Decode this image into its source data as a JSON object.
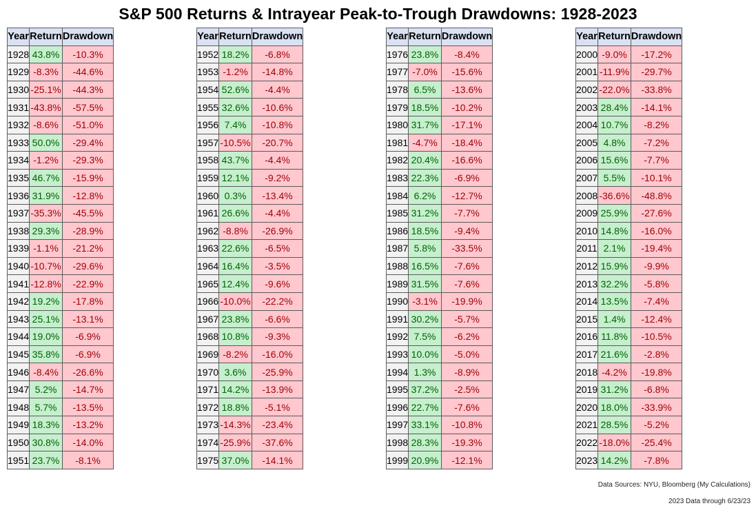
{
  "title": "S&P 500 Returns & Intrayear Peak-to-Trough Drawdowns: 1928-2023",
  "headers": {
    "year": "Year",
    "return": "Return",
    "drawdown": "Drawdown"
  },
  "source_note": "Data Sources: NYU, Bloomberg (My Calculations)",
  "date_note": "2023 Data through 6/23/23",
  "colors": {
    "positive_fill": "#c6efce",
    "negative_fill": "#ffc7ce",
    "header_fill": "#d9e1f2"
  },
  "chart_data": {
    "type": "table",
    "title": "S&P 500 Returns & Intrayear Peak-to-Trough Drawdowns: 1928-2023",
    "columns": [
      "Year",
      "Return",
      "Drawdown"
    ],
    "rows": [
      [
        "1928",
        "43.8%",
        "-10.3%"
      ],
      [
        "1929",
        "-8.3%",
        "-44.6%"
      ],
      [
        "1930",
        "-25.1%",
        "-44.3%"
      ],
      [
        "1931",
        "-43.8%",
        "-57.5%"
      ],
      [
        "1932",
        "-8.6%",
        "-51.0%"
      ],
      [
        "1933",
        "50.0%",
        "-29.4%"
      ],
      [
        "1934",
        "-1.2%",
        "-29.3%"
      ],
      [
        "1935",
        "46.7%",
        "-15.9%"
      ],
      [
        "1936",
        "31.9%",
        "-12.8%"
      ],
      [
        "1937",
        "-35.3%",
        "-45.5%"
      ],
      [
        "1938",
        "29.3%",
        "-28.9%"
      ],
      [
        "1939",
        "-1.1%",
        "-21.2%"
      ],
      [
        "1940",
        "-10.7%",
        "-29.6%"
      ],
      [
        "1941",
        "-12.8%",
        "-22.9%"
      ],
      [
        "1942",
        "19.2%",
        "-17.8%"
      ],
      [
        "1943",
        "25.1%",
        "-13.1%"
      ],
      [
        "1944",
        "19.0%",
        "-6.9%"
      ],
      [
        "1945",
        "35.8%",
        "-6.9%"
      ],
      [
        "1946",
        "-8.4%",
        "-26.6%"
      ],
      [
        "1947",
        "5.2%",
        "-14.7%"
      ],
      [
        "1948",
        "5.7%",
        "-13.5%"
      ],
      [
        "1949",
        "18.3%",
        "-13.2%"
      ],
      [
        "1950",
        "30.8%",
        "-14.0%"
      ],
      [
        "1951",
        "23.7%",
        "-8.1%"
      ],
      [
        "1952",
        "18.2%",
        "-6.8%"
      ],
      [
        "1953",
        "-1.2%",
        "-14.8%"
      ],
      [
        "1954",
        "52.6%",
        "-4.4%"
      ],
      [
        "1955",
        "32.6%",
        "-10.6%"
      ],
      [
        "1956",
        "7.4%",
        "-10.8%"
      ],
      [
        "1957",
        "-10.5%",
        "-20.7%"
      ],
      [
        "1958",
        "43.7%",
        "-4.4%"
      ],
      [
        "1959",
        "12.1%",
        "-9.2%"
      ],
      [
        "1960",
        "0.3%",
        "-13.4%"
      ],
      [
        "1961",
        "26.6%",
        "-4.4%"
      ],
      [
        "1962",
        "-8.8%",
        "-26.9%"
      ],
      [
        "1963",
        "22.6%",
        "-6.5%"
      ],
      [
        "1964",
        "16.4%",
        "-3.5%"
      ],
      [
        "1965",
        "12.4%",
        "-9.6%"
      ],
      [
        "1966",
        "-10.0%",
        "-22.2%"
      ],
      [
        "1967",
        "23.8%",
        "-6.6%"
      ],
      [
        "1968",
        "10.8%",
        "-9.3%"
      ],
      [
        "1969",
        "-8.2%",
        "-16.0%"
      ],
      [
        "1970",
        "3.6%",
        "-25.9%"
      ],
      [
        "1971",
        "14.2%",
        "-13.9%"
      ],
      [
        "1972",
        "18.8%",
        "-5.1%"
      ],
      [
        "1973",
        "-14.3%",
        "-23.4%"
      ],
      [
        "1974",
        "-25.9%",
        "-37.6%"
      ],
      [
        "1975",
        "37.0%",
        "-14.1%"
      ],
      [
        "1976",
        "23.8%",
        "-8.4%"
      ],
      [
        "1977",
        "-7.0%",
        "-15.6%"
      ],
      [
        "1978",
        "6.5%",
        "-13.6%"
      ],
      [
        "1979",
        "18.5%",
        "-10.2%"
      ],
      [
        "1980",
        "31.7%",
        "-17.1%"
      ],
      [
        "1981",
        "-4.7%",
        "-18.4%"
      ],
      [
        "1982",
        "20.4%",
        "-16.6%"
      ],
      [
        "1983",
        "22.3%",
        "-6.9%"
      ],
      [
        "1984",
        "6.2%",
        "-12.7%"
      ],
      [
        "1985",
        "31.2%",
        "-7.7%"
      ],
      [
        "1986",
        "18.5%",
        "-9.4%"
      ],
      [
        "1987",
        "5.8%",
        "-33.5%"
      ],
      [
        "1988",
        "16.5%",
        "-7.6%"
      ],
      [
        "1989",
        "31.5%",
        "-7.6%"
      ],
      [
        "1990",
        "-3.1%",
        "-19.9%"
      ],
      [
        "1991",
        "30.2%",
        "-5.7%"
      ],
      [
        "1992",
        "7.5%",
        "-6.2%"
      ],
      [
        "1993",
        "10.0%",
        "-5.0%"
      ],
      [
        "1994",
        "1.3%",
        "-8.9%"
      ],
      [
        "1995",
        "37.2%",
        "-2.5%"
      ],
      [
        "1996",
        "22.7%",
        "-7.6%"
      ],
      [
        "1997",
        "33.1%",
        "-10.8%"
      ],
      [
        "1998",
        "28.3%",
        "-19.3%"
      ],
      [
        "1999",
        "20.9%",
        "-12.1%"
      ],
      [
        "2000",
        "-9.0%",
        "-17.2%"
      ],
      [
        "2001",
        "-11.9%",
        "-29.7%"
      ],
      [
        "2002",
        "-22.0%",
        "-33.8%"
      ],
      [
        "2003",
        "28.4%",
        "-14.1%"
      ],
      [
        "2004",
        "10.7%",
        "-8.2%"
      ],
      [
        "2005",
        "4.8%",
        "-7.2%"
      ],
      [
        "2006",
        "15.6%",
        "-7.7%"
      ],
      [
        "2007",
        "5.5%",
        "-10.1%"
      ],
      [
        "2008",
        "-36.6%",
        "-48.8%"
      ],
      [
        "2009",
        "25.9%",
        "-27.6%"
      ],
      [
        "2010",
        "14.8%",
        "-16.0%"
      ],
      [
        "2011",
        "2.1%",
        "-19.4%"
      ],
      [
        "2012",
        "15.9%",
        "-9.9%"
      ],
      [
        "2013",
        "32.2%",
        "-5.8%"
      ],
      [
        "2014",
        "13.5%",
        "-7.4%"
      ],
      [
        "2015",
        "1.4%",
        "-12.4%"
      ],
      [
        "2016",
        "11.8%",
        "-10.5%"
      ],
      [
        "2017",
        "21.6%",
        "-2.8%"
      ],
      [
        "2018",
        "-4.2%",
        "-19.8%"
      ],
      [
        "2019",
        "31.2%",
        "-6.8%"
      ],
      [
        "2020",
        "18.0%",
        "-33.9%"
      ],
      [
        "2021",
        "28.5%",
        "-5.2%"
      ],
      [
        "2022",
        "-18.0%",
        "-25.4%"
      ],
      [
        "2023",
        "14.2%",
        "-7.8%"
      ]
    ]
  }
}
